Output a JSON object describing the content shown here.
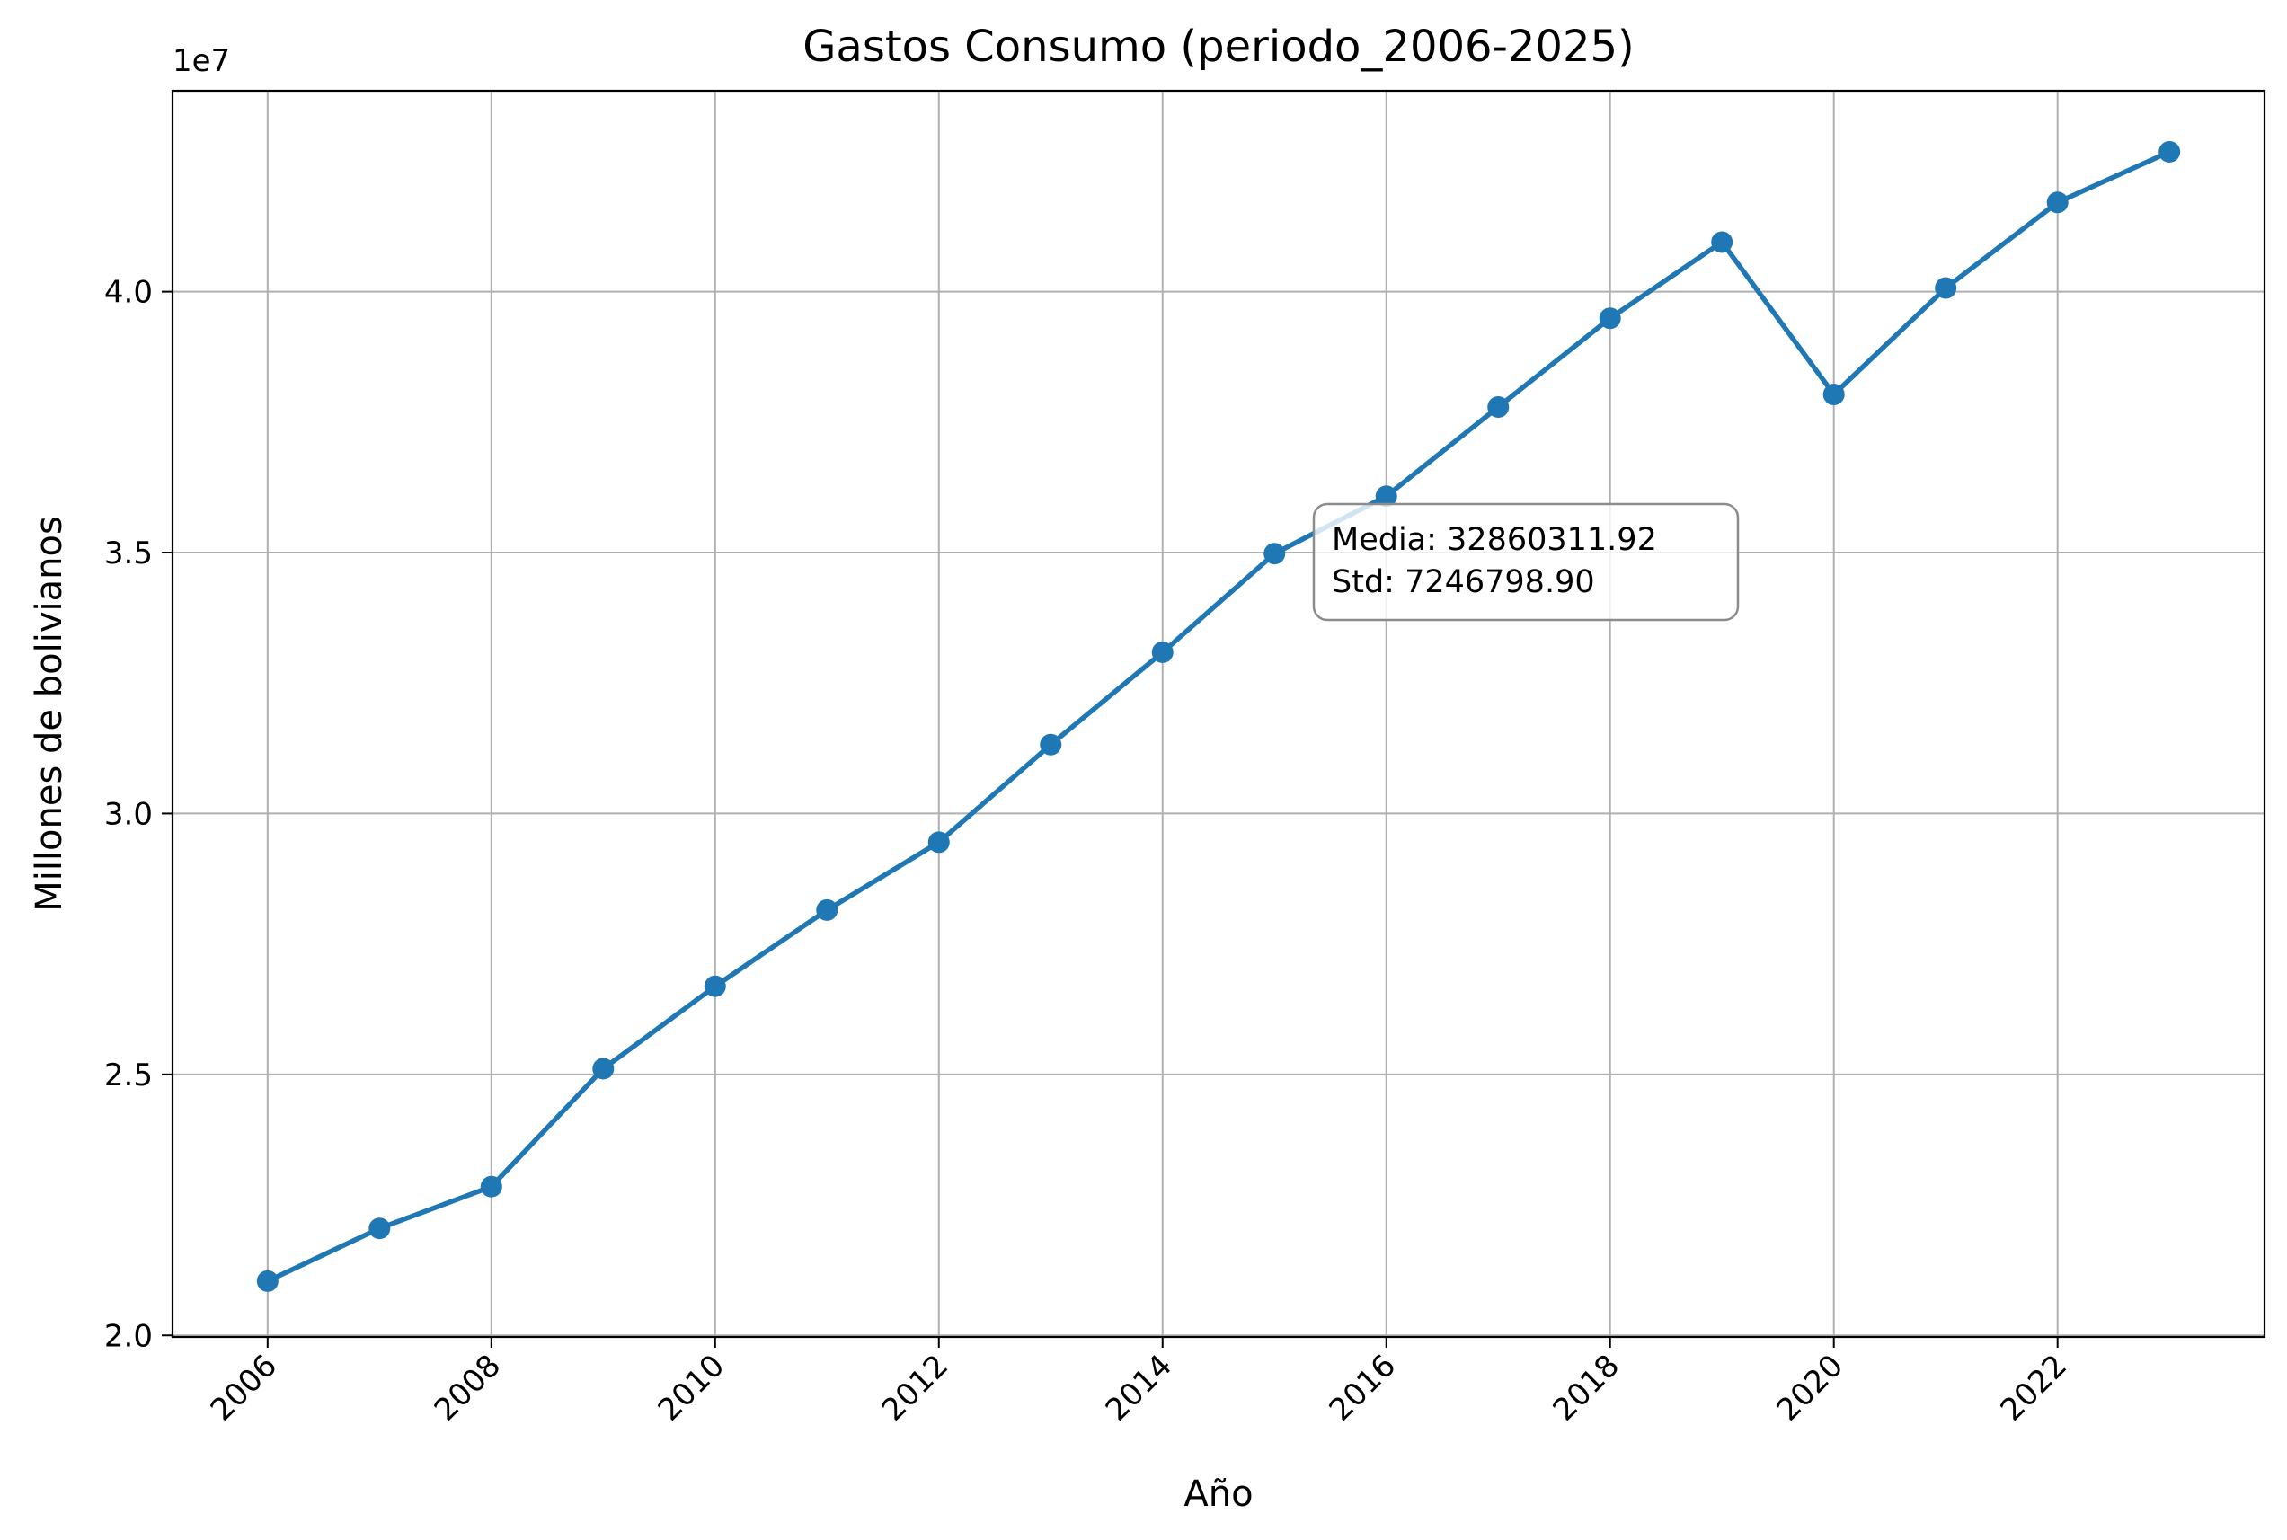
{
  "chart_data": {
    "type": "line",
    "title": "Gastos Consumo (periodo_2006-2025)",
    "xlabel": "Año",
    "ylabel": "Millones de bolivianos",
    "y_offset_label": "1e7",
    "y_scale_factor": 10000000,
    "xlim": [
      2005.15,
      2023.85
    ],
    "ylim": [
      19970000,
      43850000
    ],
    "x_ticks": [
      2006,
      2008,
      2010,
      2012,
      2014,
      2016,
      2018,
      2020,
      2022
    ],
    "x_tick_labels": [
      "2006",
      "2008",
      "2010",
      "2012",
      "2014",
      "2016",
      "2018",
      "2020",
      "2022"
    ],
    "y_ticks": [
      20000000,
      25000000,
      30000000,
      35000000,
      40000000
    ],
    "y_tick_labels": [
      "2.0",
      "2.5",
      "3.0",
      "3.5",
      "4.0"
    ],
    "grid": true,
    "series": [
      {
        "x": [
          2006,
          2007,
          2008,
          2009,
          2010,
          2011,
          2012,
          2013,
          2014,
          2015,
          2016,
          2017,
          2018,
          2019,
          2020,
          2021,
          2022,
          2023
        ],
        "y": [
          21040000,
          22050000,
          22850000,
          25110000,
          26690000,
          28150000,
          29450000,
          31320000,
          33090000,
          34980000,
          36080000,
          37790000,
          39490000,
          40950000,
          38030000,
          40070000,
          41710000,
          42680000
        ],
        "color": "#1f77b4"
      }
    ],
    "annotation": {
      "lines": [
        "Media: 32860311.92",
        "Std: 7246798.90"
      ]
    }
  }
}
